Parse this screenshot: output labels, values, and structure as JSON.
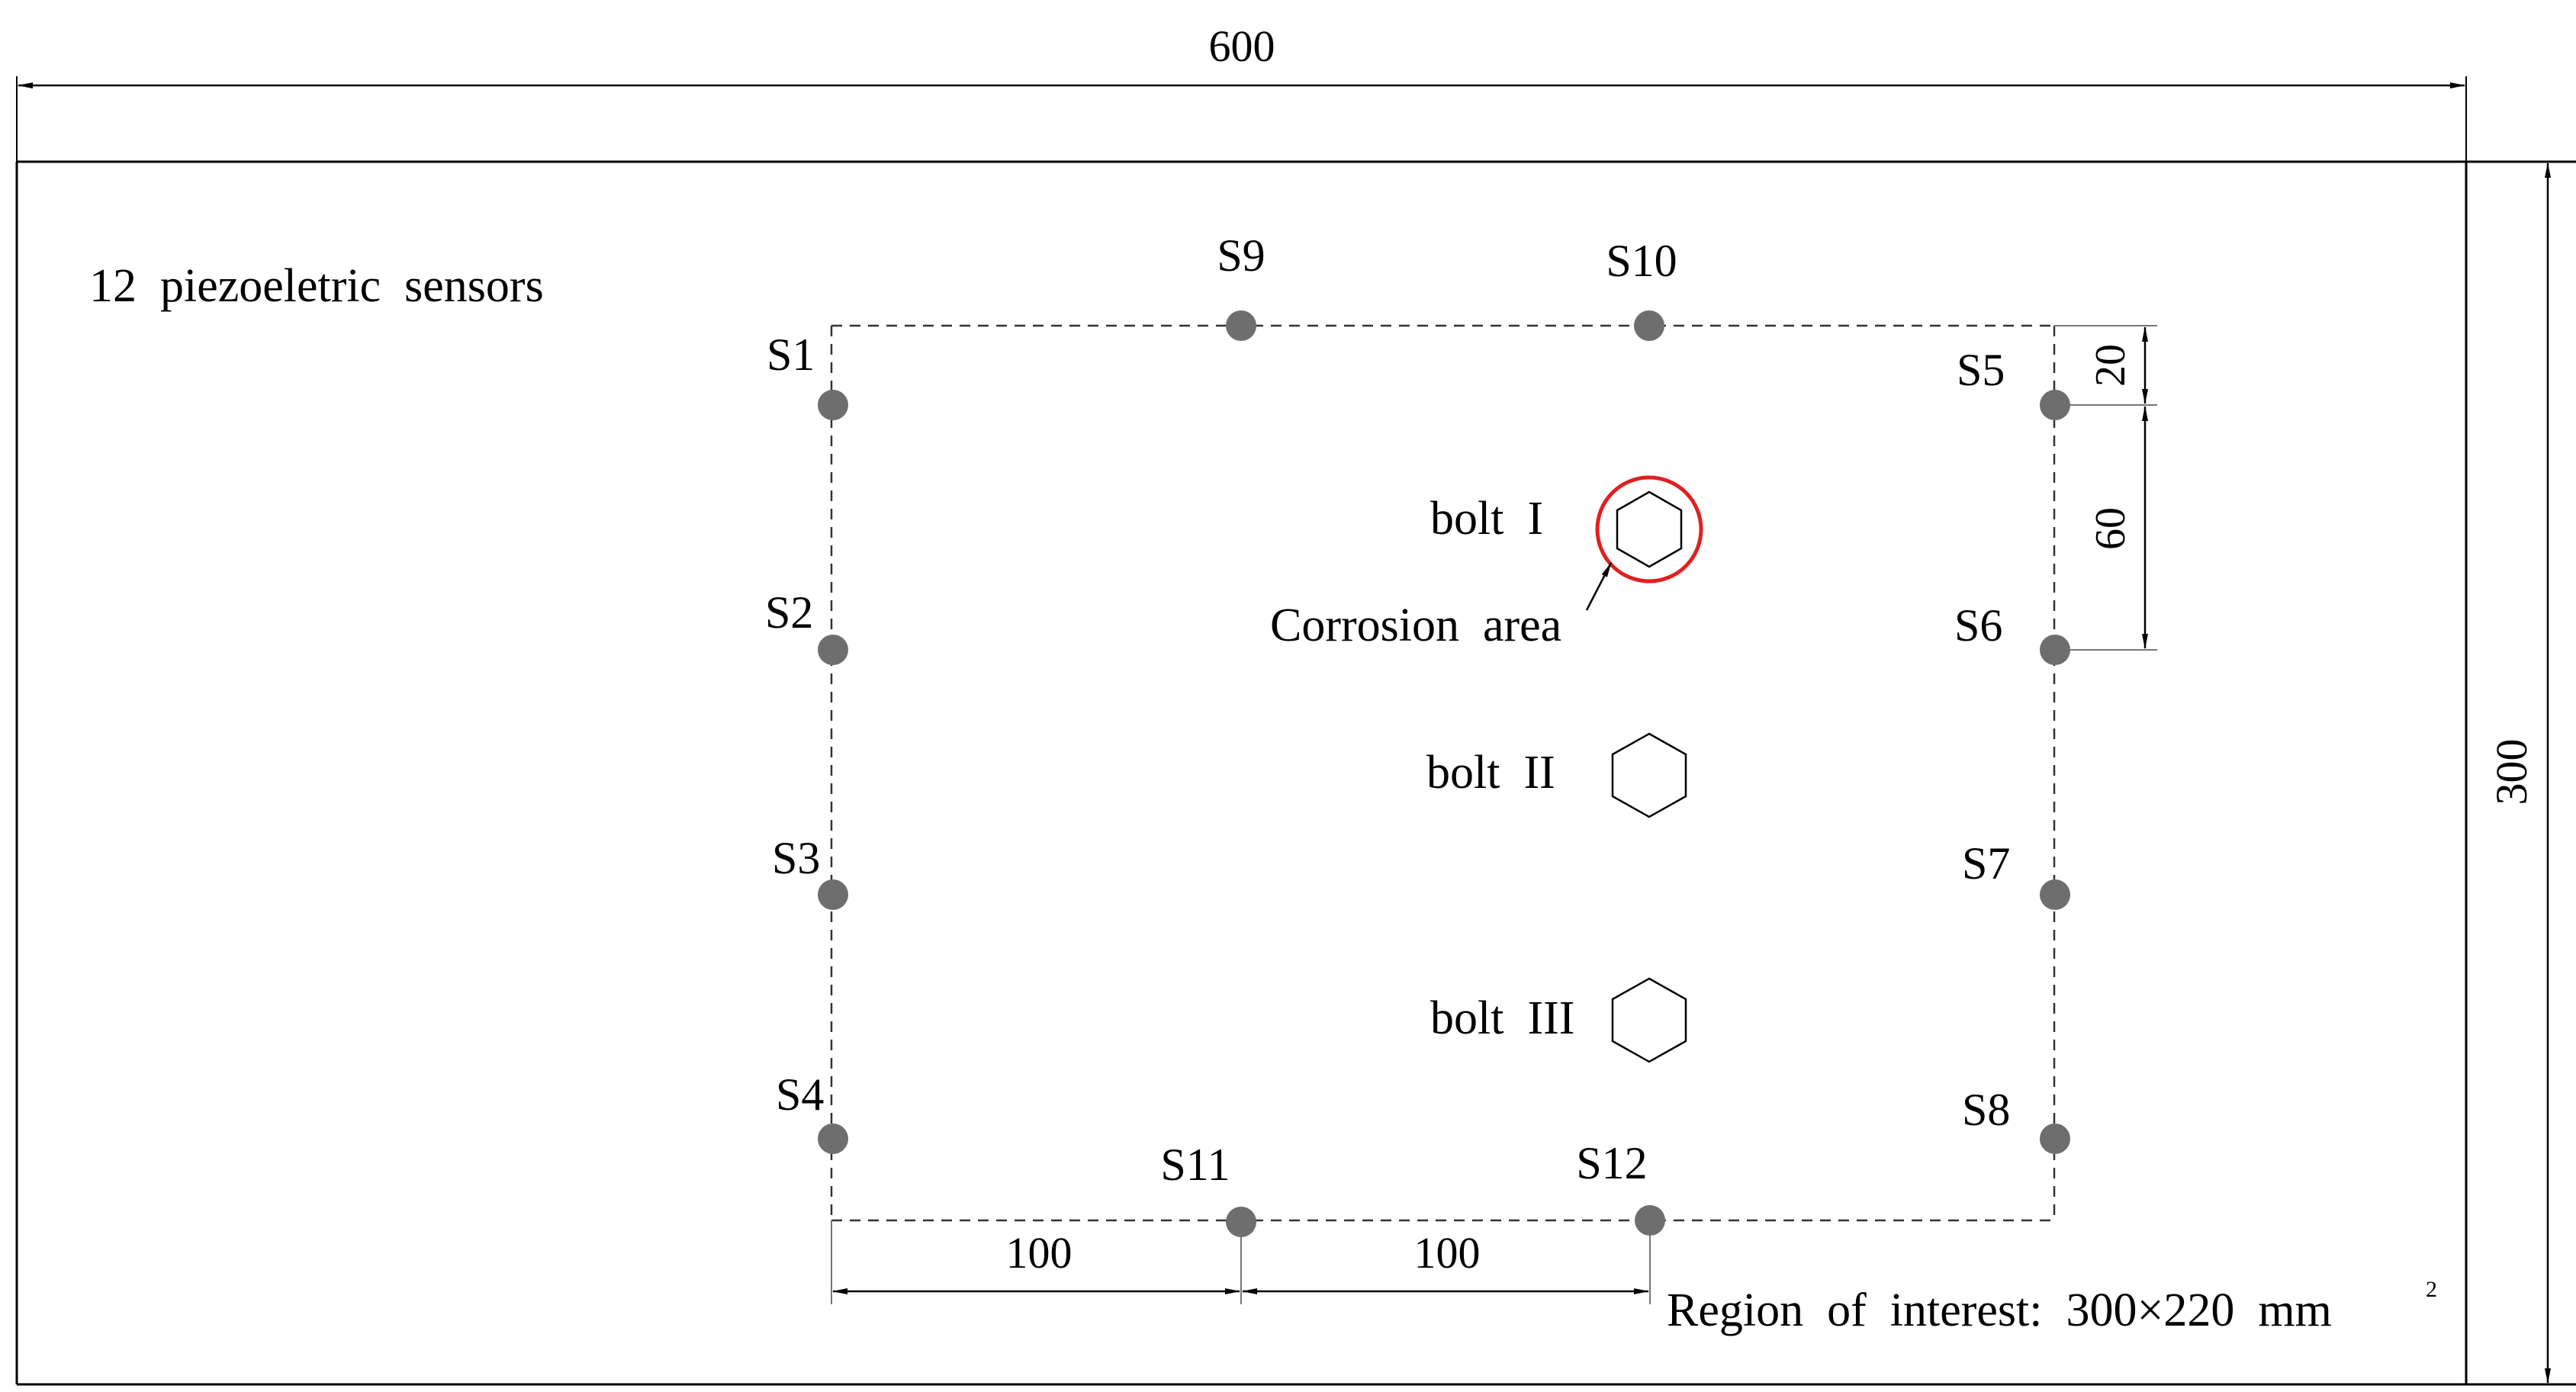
{
  "dimensions": {
    "plate_width": "600",
    "plate_height": "300",
    "spacing_a": "100",
    "spacing_b": "100",
    "edge_offset": "20",
    "sensor_spacing": "60"
  },
  "labels": {
    "sensor_count": "12  piezoeletric  sensors",
    "corrosion_area": "Corrosion  area",
    "region_of_interest": "Region  of  interest:  300×220  mm",
    "region_unit_sup": "2"
  },
  "bolts": [
    {
      "label": "bolt  I",
      "corroded": true
    },
    {
      "label": "bolt  II",
      "corroded": false
    },
    {
      "label": "bolt  III",
      "corroded": false
    }
  ],
  "sensors": [
    "S1",
    "S2",
    "S3",
    "S4",
    "S5",
    "S6",
    "S7",
    "S8",
    "S9",
    "S10",
    "S11",
    "S12"
  ],
  "colors": {
    "line": "#000000",
    "sensor_fill": "#6e6e6e",
    "corrosion_ring": "#e02020",
    "dashed": "#333333"
  }
}
